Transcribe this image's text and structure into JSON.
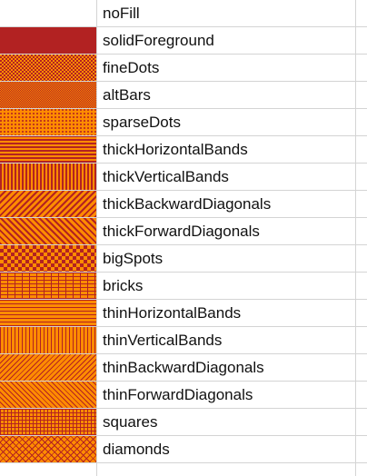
{
  "colors": {
    "foreground": "#b22222",
    "background": "#ff8c00",
    "gridline": "#d4d4d4",
    "text": "#111111"
  },
  "rows": [
    {
      "label": "noFill",
      "pattern": "noFill"
    },
    {
      "label": "solidForeground",
      "pattern": "solidForeground"
    },
    {
      "label": "fineDots",
      "pattern": "fineDots"
    },
    {
      "label": "altBars",
      "pattern": "altBars"
    },
    {
      "label": "sparseDots",
      "pattern": "sparseDots"
    },
    {
      "label": "thickHorizontalBands",
      "pattern": "thickHorizontalBands"
    },
    {
      "label": "thickVerticalBands",
      "pattern": "thickVerticalBands"
    },
    {
      "label": "thickBackwardDiagonals",
      "pattern": "thickBackwardDiagonals"
    },
    {
      "label": "thickForwardDiagonals",
      "pattern": "thickForwardDiagonals"
    },
    {
      "label": "bigSpots",
      "pattern": "bigSpots"
    },
    {
      "label": "bricks",
      "pattern": "bricks"
    },
    {
      "label": "thinHorizontalBands",
      "pattern": "thinHorizontalBands"
    },
    {
      "label": "thinVerticalBands",
      "pattern": "thinVerticalBands"
    },
    {
      "label": "thinBackwardDiagonals",
      "pattern": "thinBackwardDiagonals"
    },
    {
      "label": "thinForwardDiagonals",
      "pattern": "thinForwardDiagonals"
    },
    {
      "label": "squares",
      "pattern": "squares"
    },
    {
      "label": "diamonds",
      "pattern": "diamonds"
    }
  ]
}
